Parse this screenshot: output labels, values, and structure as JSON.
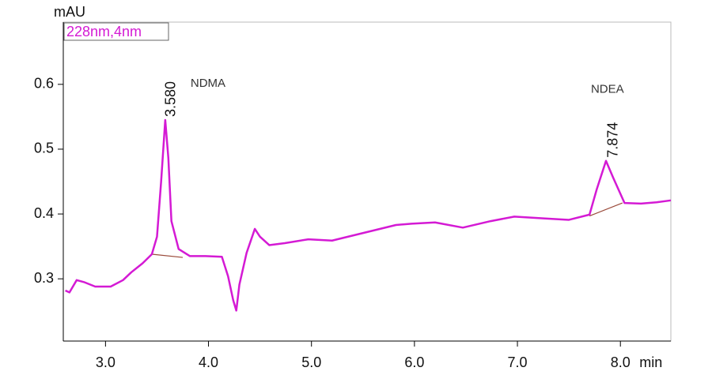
{
  "chart_data": {
    "type": "line",
    "x_label": "min",
    "y_label": "mAU",
    "xlim": [
      2.59,
      8.49
    ],
    "ylim": [
      0.204,
      0.696
    ],
    "xticks": [
      {
        "value": 3,
        "label": "3.0"
      },
      {
        "value": 4,
        "label": "4.0"
      },
      {
        "value": 5,
        "label": "5.0"
      },
      {
        "value": 6,
        "label": "6.0"
      },
      {
        "value": 7,
        "label": "7.0"
      },
      {
        "value": 8,
        "label": "8.0"
      }
    ],
    "yticks": [
      0.3,
      0.4,
      0.5,
      0.6
    ],
    "series": [
      {
        "name": "228nm,4nm",
        "color": "#d41ad4",
        "x": [
          2.61,
          2.65,
          2.72,
          2.79,
          2.9,
          3.05,
          3.17,
          3.25,
          3.36,
          3.45,
          3.5,
          3.54,
          3.58,
          3.61,
          3.64,
          3.71,
          3.82,
          3.97,
          4.13,
          4.19,
          4.24,
          4.27,
          4.3,
          4.37,
          4.45,
          4.5,
          4.59,
          4.74,
          4.97,
          5.2,
          5.51,
          5.82,
          5.97,
          6.2,
          6.47,
          6.74,
          6.97,
          7.27,
          7.5,
          7.7,
          7.77,
          7.86,
          7.93,
          8.04,
          8.2,
          8.35,
          8.49
        ],
        "values": [
          0.282,
          0.279,
          0.298,
          0.295,
          0.288,
          0.288,
          0.298,
          0.31,
          0.324,
          0.338,
          0.365,
          0.45,
          0.545,
          0.487,
          0.389,
          0.346,
          0.335,
          0.335,
          0.334,
          0.304,
          0.267,
          0.251,
          0.291,
          0.34,
          0.377,
          0.365,
          0.352,
          0.355,
          0.361,
          0.359,
          0.371,
          0.383,
          0.385,
          0.387,
          0.379,
          0.389,
          0.396,
          0.393,
          0.391,
          0.399,
          0.438,
          0.482,
          0.456,
          0.417,
          0.416,
          0.418,
          0.421
        ]
      }
    ],
    "baselines": [
      {
        "color": "#9a4a3a",
        "x": [
          3.45,
          3.75
        ],
        "values": [
          0.338,
          0.333
        ]
      },
      {
        "color": "#9a4a3a",
        "x": [
          7.7,
          8.02
        ],
        "values": [
          0.397,
          0.417
        ]
      }
    ],
    "peaks": [
      {
        "label": "3.580",
        "compound": "NDMA",
        "x": 3.58,
        "y": 0.545
      },
      {
        "label": "7.874",
        "compound": "NDEA",
        "x": 7.874,
        "y": 0.482
      }
    ]
  }
}
